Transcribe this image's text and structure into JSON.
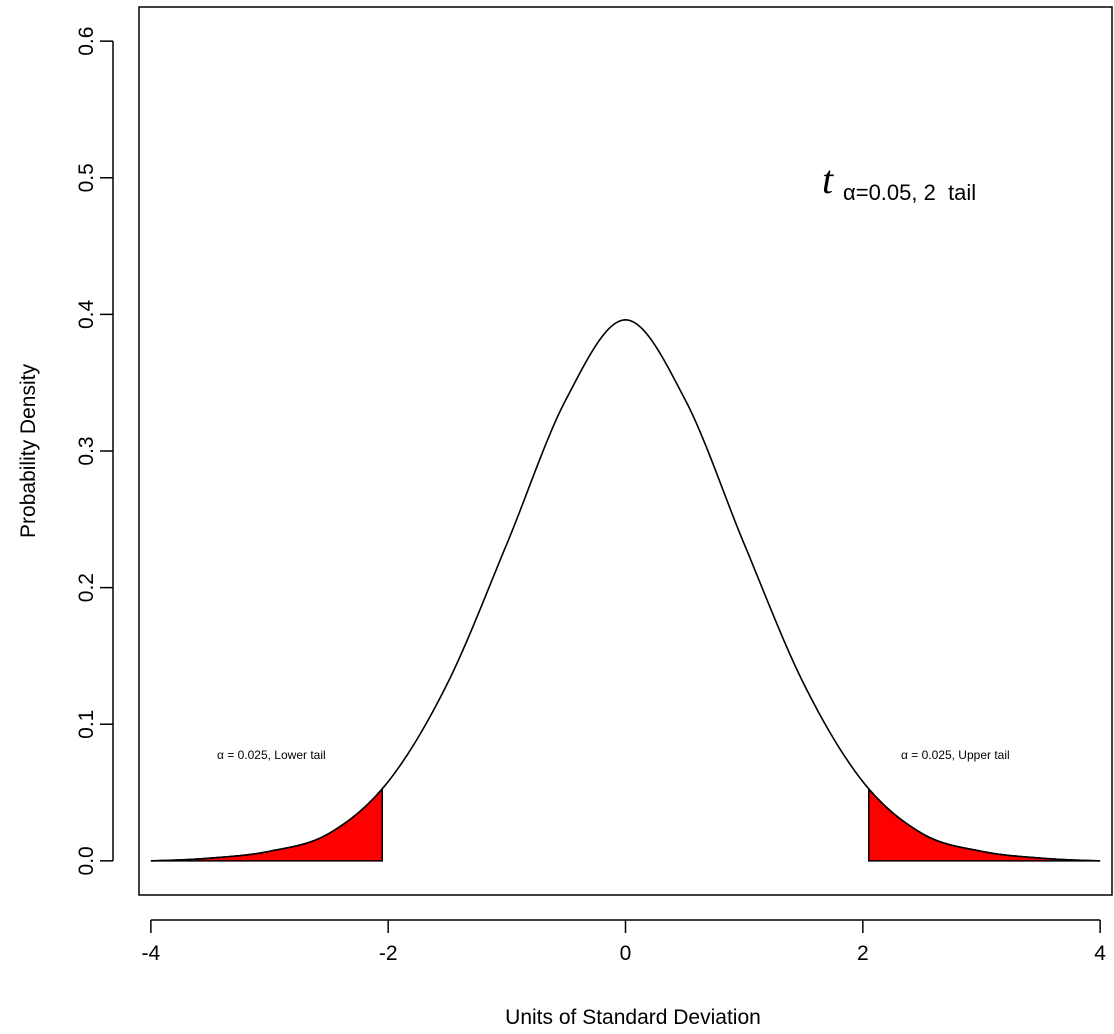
{
  "chart_data": {
    "type": "area",
    "title": "",
    "xlabel": "Units of Standard Deviation",
    "ylabel": "Probability Density",
    "xlim": [
      -4.1,
      4.1
    ],
    "ylim": [
      -0.025,
      0.625
    ],
    "x_ticks": [
      -4,
      -2,
      0,
      2,
      4
    ],
    "y_ticks": [
      0.0,
      0.1,
      0.2,
      0.3,
      0.4,
      0.5,
      0.6
    ],
    "x_tick_labels": [
      "-4",
      "-2",
      "0",
      "2",
      "4"
    ],
    "y_tick_labels": [
      "0.0",
      "0.1",
      "0.2",
      "0.3",
      "0.4",
      "0.5",
      "0.6"
    ],
    "curve": {
      "x": [
        -4.0,
        -3.5,
        -3.0,
        -2.5,
        -2.0,
        -1.5,
        -1.0,
        -0.5,
        0.0,
        0.5,
        1.0,
        1.5,
        2.0,
        2.5,
        3.0,
        3.5,
        4.0
      ],
      "y": [
        0.0,
        0.002,
        0.007,
        0.02,
        0.058,
        0.13,
        0.232,
        0.338,
        0.396,
        0.338,
        0.232,
        0.13,
        0.058,
        0.02,
        0.007,
        0.002,
        0.0
      ]
    },
    "shaded_regions": [
      {
        "from": -4.0,
        "to": -2.05,
        "color": "#ff0000"
      },
      {
        "from": 2.05,
        "to": 4.0,
        "color": "#ff0000"
      }
    ],
    "annotations": {
      "big_symbol": "t",
      "big_subscript": "α=0.05, 2  tail",
      "lower_tail": "α = 0.025, Lower tail",
      "upper_tail": "α = 0.025, Upper tail"
    }
  }
}
